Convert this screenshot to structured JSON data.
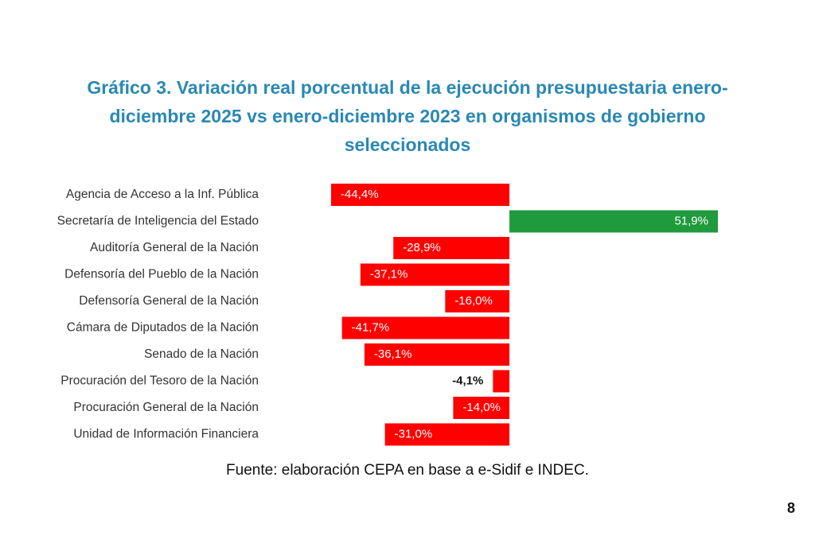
{
  "chart_data": {
    "type": "hbar",
    "title": [
      "Gráfico 3. Variación real porcentual de la ejecución presupuestaria enero-",
      "diciembre 2025 vs enero-diciembre 2023 en organismos de gobierno",
      "seleccionados"
    ],
    "categories": [
      "Agencia de Acceso a la Inf. Pública",
      "Secretaría de Inteligencia del Estado",
      "Auditoría General de la Nación",
      "Defensoría del Pueblo de la Nación",
      "Defensoría General de la Nación",
      "Cámara de Diputados de la Nación",
      "Senado de la Nación",
      "Procuración del Tesoro de la Nación",
      "Procuración General de la Nación",
      "Unidad de Información Financiera"
    ],
    "values": [
      -44.4,
      51.9,
      -28.9,
      -37.1,
      -16.0,
      -41.7,
      -36.1,
      -4.1,
      -14.0,
      -31.0
    ],
    "value_labels": [
      "-44,4%",
      "51,9%",
      "-28,9%",
      "-37,1%",
      "-16,0%",
      "-41,7%",
      "-36,1%",
      "-4,1%",
      "-14,0%",
      "-31,0%"
    ],
    "negative_color": "#ff0000",
    "positive_color": "#1f9a3c",
    "source": "Fuente: elaboración CEPA en base a e-Sidif e INDEC.",
    "page_number": "8"
  }
}
